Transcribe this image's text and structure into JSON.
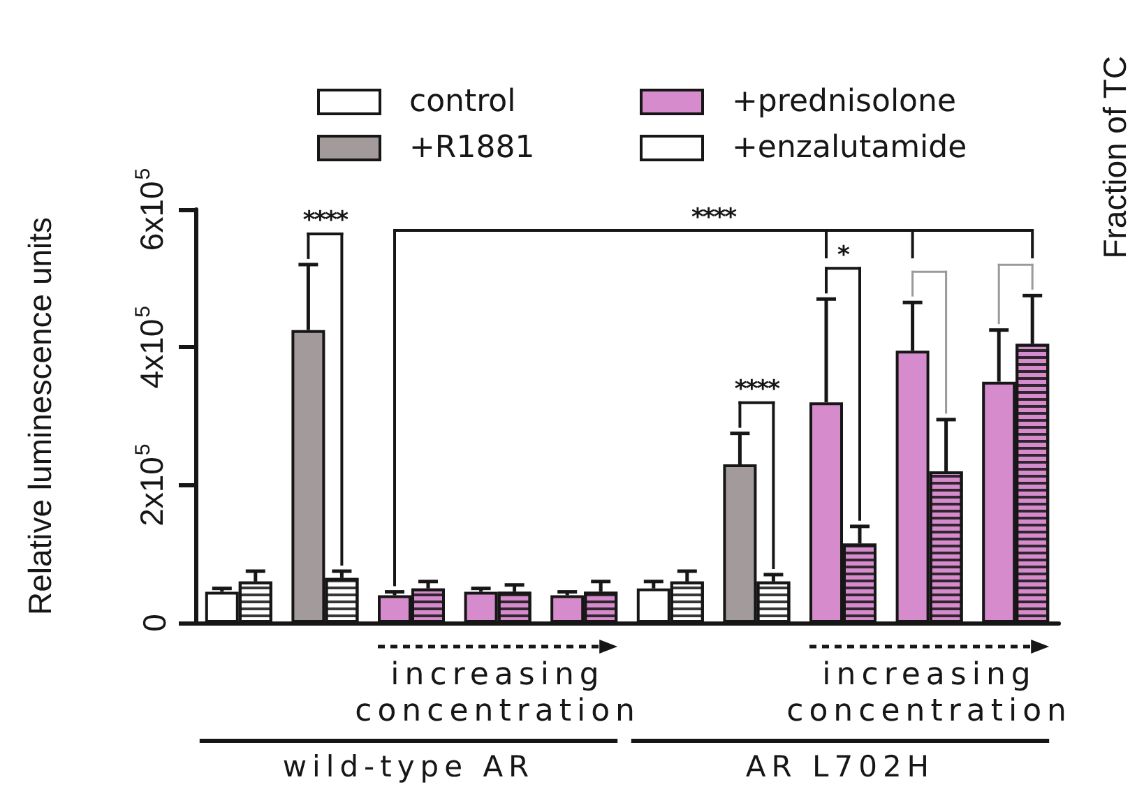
{
  "chart_data": {
    "type": "bar",
    "ylabel": "Relative luminescence units",
    "categories": [
      null,
      null,
      null,
      null,
      null,
      null,
      null,
      null,
      null,
      null
    ],
    "series": [
      {
        "name": "control",
        "color": "#ffffff",
        "values": [
          45000,
          null,
          null,
          null,
          null,
          50000,
          null,
          null,
          null,
          null
        ],
        "errors": [
          [
            45000,
            50000
          ],
          null,
          null,
          null,
          null,
          [
            50000,
            60000
          ],
          null,
          null,
          null,
          null
        ]
      },
      {
        "name": "+R1881",
        "color": "#a39b9b",
        "values": [
          null,
          425000,
          null,
          null,
          null,
          null,
          230000,
          null,
          null,
          null
        ],
        "errors": [
          null,
          [
            425000,
            520000
          ],
          null,
          null,
          null,
          null,
          [
            230000,
            275000
          ],
          null,
          null,
          null
        ]
      },
      {
        "name": "+prednisolone",
        "color": "#d58bcc",
        "values": [
          null,
          null,
          40000,
          45000,
          40000,
          null,
          null,
          320000,
          395000,
          350000
        ],
        "errors": [
          null,
          null,
          [
            40000,
            45000
          ],
          [
            45000,
            50000
          ],
          [
            40000,
            45000
          ],
          null,
          null,
          [
            320000,
            470000
          ],
          [
            395000,
            465000
          ],
          [
            350000,
            425000
          ]
        ]
      },
      {
        "name": "+enzalutamide",
        "color": "#ffffff",
        "colors": [
          "#ffffff",
          "#ffffff",
          "#d58bcc",
          "#d58bcc",
          "#d58bcc",
          "#ffffff",
          "#ffffff",
          "#d58bcc",
          "#d58bcc",
          "#d58bcc"
        ],
        "values": [
          60000,
          65000,
          50000,
          45000,
          45000,
          60000,
          60000,
          115000,
          220000,
          405000
        ],
        "errors": [
          [
            60000,
            75000
          ],
          [
            65000,
            75000
          ],
          [
            50000,
            60000
          ],
          [
            45000,
            55000
          ],
          [
            45000,
            60000
          ],
          [
            60000,
            75000
          ],
          [
            60000,
            70000
          ],
          [
            115000,
            140000
          ],
          [
            220000,
            295000
          ],
          [
            405000,
            475000
          ]
        ]
      }
    ],
    "ylim": [
      0,
      600000
    ],
    "yticks": [
      0,
      {
        "value": 200000,
        "label": "2x10$^{5}$"
      },
      {
        "value": 400000,
        "label": "4x10$^{5}$"
      },
      {
        "value": 600000,
        "label": "6x10$^{5}$"
      }
    ],
    "legend": "top",
    "annotations": [
      "****",
      "****",
      "****",
      "*",
      "increasing concentration",
      "increasing concentration",
      "wild-type AR",
      "AR L702H",
      "Fraction of TC"
    ]
  }
}
